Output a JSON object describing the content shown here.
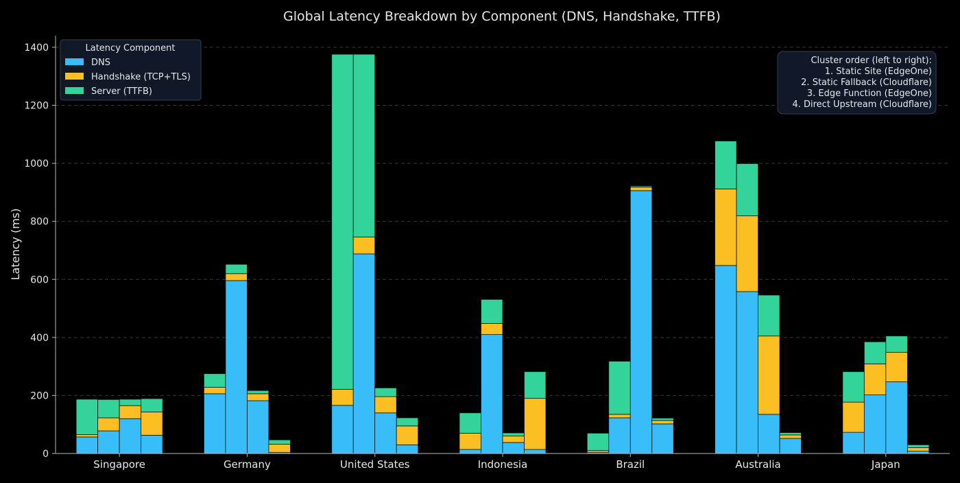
{
  "chart_data": {
    "type": "bar",
    "stacked": true,
    "title": "Global Latency Breakdown by Component (DNS, Handshake, TTFB)",
    "ylabel": "Latency (ms)",
    "xlabel": "",
    "ylim": [
      0,
      1440
    ],
    "yticks": [
      0,
      200,
      400,
      600,
      800,
      1000,
      1200,
      1400
    ],
    "grid": "y-dashed",
    "categories": [
      "Singapore",
      "Germany",
      "United States",
      "Indonesia",
      "Brazil",
      "Australia",
      "Japan"
    ],
    "clusters_per_category": 4,
    "components": [
      {
        "name": "DNS",
        "color": "#38bdf8"
      },
      {
        "name": "Handshake (TCP+TLS)",
        "color": "#fbbf24"
      },
      {
        "name": "Server (TTFB)",
        "color": "#34d399"
      }
    ],
    "legend": {
      "title": "Latency Component",
      "placement": "top-left"
    },
    "annotation": {
      "placement": "top-right",
      "lines": [
        "Cluster order (left to right):",
        "1. Static Site (EdgeOne)",
        "2. Static Fallback (Cloudflare)",
        "3. Edge Function (EdgeOne)",
        "4. Direct Upstream (Cloudflare)"
      ]
    },
    "series": [
      {
        "values": [
          [
            [
              57,
              8,
              122
            ],
            [
              78,
              45,
              63
            ],
            [
              120,
              45,
              22
            ],
            [
              63,
              80,
              46
            ]
          ],
          [
            [
              206,
              22,
              47
            ],
            [
              596,
              24,
              32
            ],
            [
              182,
              24,
              11
            ],
            [
              4,
              28,
              15
            ]
          ],
          [
            [
              166,
              55,
              1155
            ],
            [
              688,
              58,
              630
            ],
            [
              140,
              56,
              30
            ],
            [
              30,
              65,
              28
            ]
          ],
          [
            [
              14,
              56,
              70
            ],
            [
              410,
              38,
              83
            ],
            [
              38,
              22,
              11
            ],
            [
              14,
              176,
              92
            ]
          ],
          [
            [
              4,
              6,
              60
            ],
            [
              123,
              12,
              183
            ],
            [
              906,
              12,
              4
            ],
            [
              102,
              12,
              8
            ]
          ],
          [
            [
              648,
              264,
              165
            ],
            [
              558,
              261,
              180
            ],
            [
              135,
              270,
              141
            ],
            [
              52,
              12,
              8
            ]
          ],
          [
            [
              73,
              104,
              105
            ],
            [
              202,
              107,
              76
            ],
            [
              247,
              102,
              56
            ],
            [
              8,
              12,
              10
            ]
          ]
        ]
      }
    ]
  }
}
